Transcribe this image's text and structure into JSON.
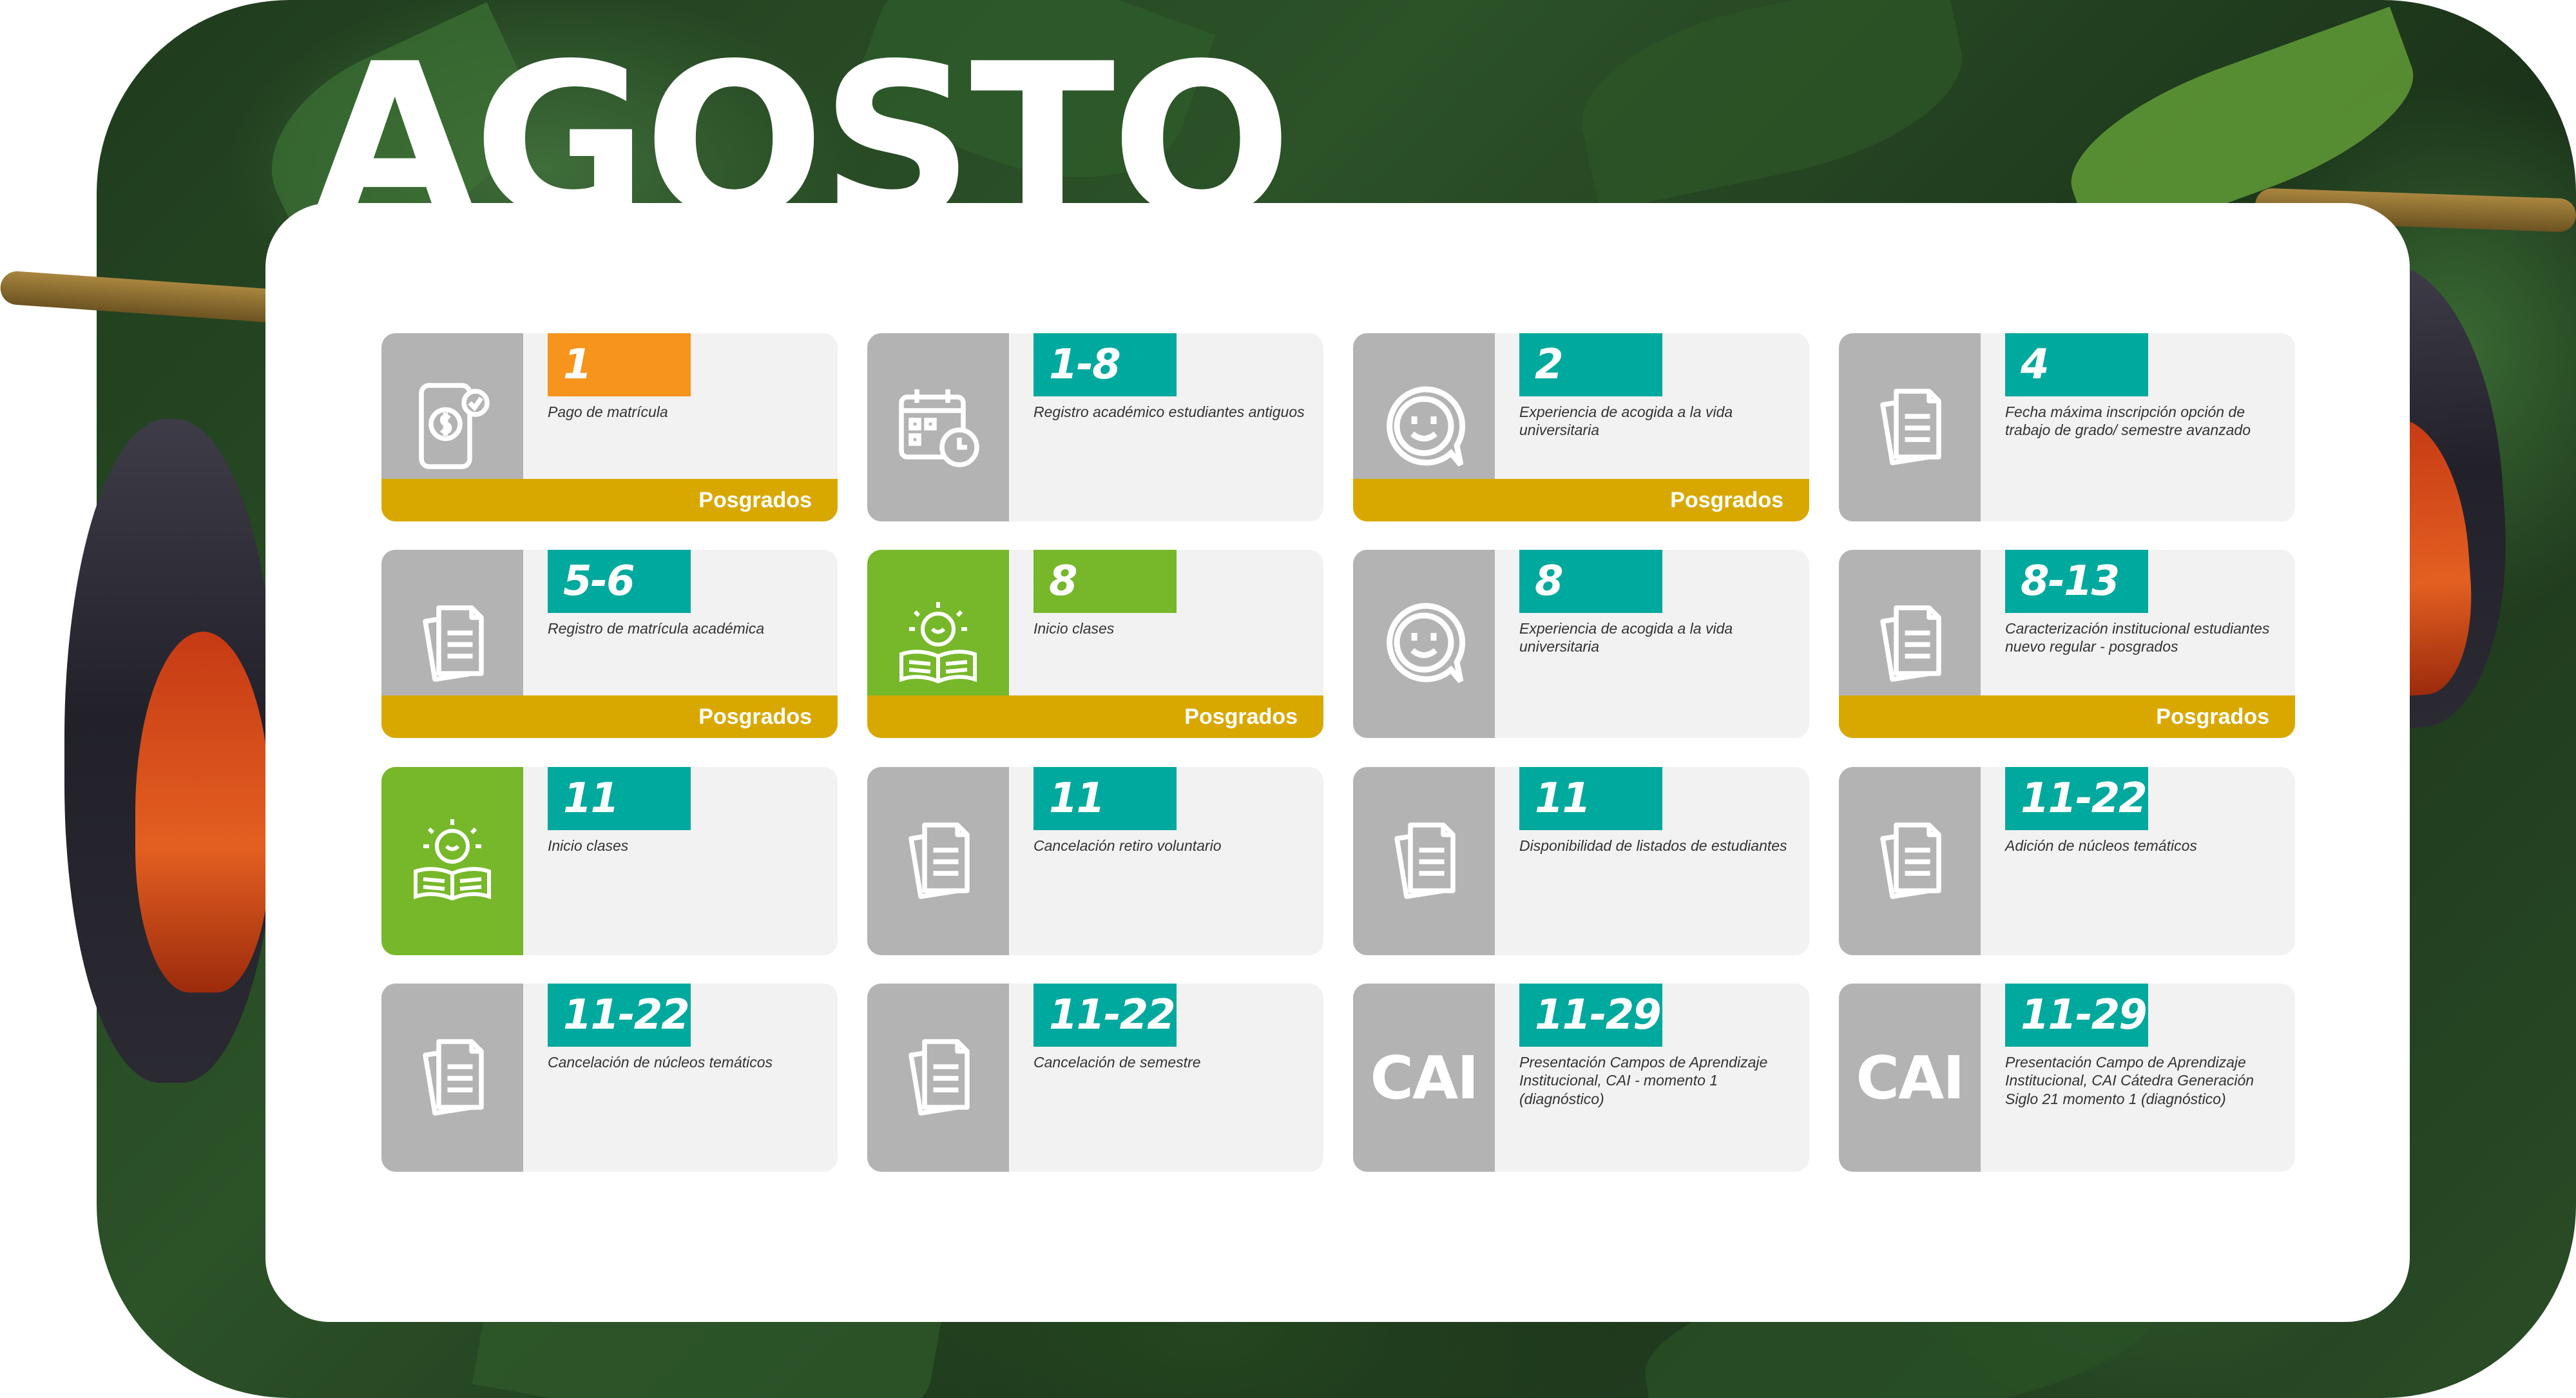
{
  "title": "AGOSTO",
  "badge_label": "Posgrados",
  "events": [
    {
      "date": "1",
      "color": "orange",
      "icon": "payment-phone-icon",
      "description": "Pago de matrícula",
      "posgrados": true
    },
    {
      "date": "1-8",
      "color": "teal",
      "icon": "calendar-clock-icon",
      "description": "Registro académico estudiantes antiguos",
      "posgrados": false
    },
    {
      "date": "2",
      "color": "teal",
      "icon": "smiley-chat-icon",
      "description": "Experiencia de acogida a la vida universitaria",
      "posgrados": true
    },
    {
      "date": "4",
      "color": "teal",
      "icon": "documents-icon",
      "description": "Fecha máxima inscripción opción de trabajo de grado/ semestre avanzado",
      "posgrados": false
    },
    {
      "date": "5-6",
      "color": "teal",
      "icon": "documents-icon",
      "description": "Registro de matrícula académica",
      "posgrados": true
    },
    {
      "date": "8",
      "color": "lime",
      "icon": "book-lightbulb-icon",
      "description": "Inicio clases",
      "posgrados": true,
      "green_side": true
    },
    {
      "date": "8",
      "color": "teal",
      "icon": "smiley-chat-icon",
      "description": "Experiencia de acogida a la vida universitaria",
      "posgrados": false
    },
    {
      "date": "8-13",
      "color": "teal",
      "icon": "documents-icon",
      "description": "Caracterización institucional estudiantes nuevo regular - posgrados",
      "posgrados": true
    },
    {
      "date": "11",
      "color": "teal",
      "icon": "book-lightbulb-icon",
      "description": "Inicio clases",
      "posgrados": false,
      "green_side": true
    },
    {
      "date": "11",
      "color": "teal",
      "icon": "documents-icon",
      "description": "Cancelación retiro voluntario",
      "posgrados": false
    },
    {
      "date": "11",
      "color": "teal",
      "icon": "documents-icon",
      "description": "Disponibilidad de listados de estudiantes",
      "posgrados": false
    },
    {
      "date": "11-22",
      "color": "teal",
      "icon": "documents-icon",
      "description": "Adición de núcleos temáticos",
      "posgrados": false
    },
    {
      "date": "11-22",
      "color": "teal",
      "icon": "documents-icon",
      "description": "Cancelación de núcleos temáticos",
      "posgrados": false
    },
    {
      "date": "11-22",
      "color": "teal",
      "icon": "documents-icon",
      "description": "Cancelación de semestre",
      "posgrados": false
    },
    {
      "date": "11-29",
      "color": "teal",
      "icon": "cai-label",
      "side_text": "CAI",
      "description": "Presentación Campos de Aprendizaje Institucional, CAI - momento 1 (diagnóstico)",
      "posgrados": false
    },
    {
      "date": "11-29",
      "color": "teal",
      "icon": "cai-label",
      "side_text": "CAI",
      "description": "Presentación Campo de Aprendizaje Institucional, CAI Cátedra Generación Siglo 21 momento 1 (diagnóstico)",
      "posgrados": false
    }
  ],
  "colors": {
    "teal": "#00a99d",
    "orange": "#f7941d",
    "lime": "#76b82a",
    "posgrados_bar": "#d9a800",
    "icon_panel": "#b3b3b3"
  }
}
